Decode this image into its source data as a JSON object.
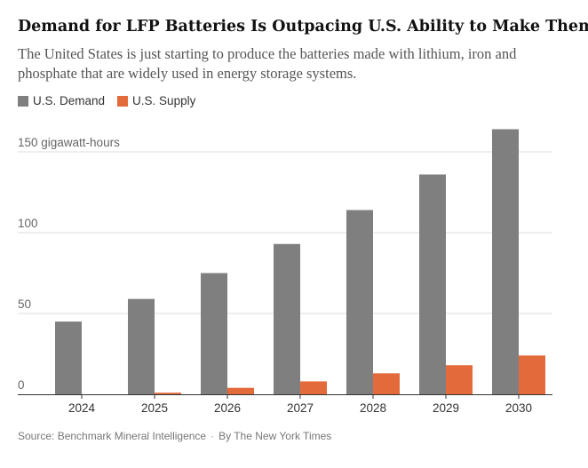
{
  "title": "Demand for LFP Batteries Is Outpacing U.S. Ability to Make Them",
  "subtitle": "The United States is just starting to produce the batteries made with lithium, iron and phosphate that are widely used in energy storage systems.",
  "legend": {
    "demand_label": "U.S. Demand",
    "supply_label": "U.S. Supply"
  },
  "source": {
    "text": "Source: Benchmark Mineral Intelligence",
    "separator": "·",
    "byline": "By The New York Times"
  },
  "colors": {
    "demand": "#7f7f7f",
    "supply": "#e36b3b",
    "grid": "#dddddd",
    "axis": "#333333",
    "label": "#666666"
  },
  "chart_data": {
    "type": "bar",
    "title": "Demand for LFP Batteries Is Outpacing U.S. Ability to Make Them",
    "xlabel": "",
    "ylabel": "gigawatt-hours",
    "categories": [
      "2024",
      "2025",
      "2026",
      "2027",
      "2028",
      "2029",
      "2030"
    ],
    "series": [
      {
        "name": "U.S. Demand",
        "values": [
          45,
          59,
          75,
          93,
          114,
          136,
          164
        ]
      },
      {
        "name": "U.S. Supply",
        "values": [
          0,
          1,
          4,
          8,
          13,
          18,
          24
        ]
      }
    ],
    "ylim": [
      0,
      165
    ],
    "yticks": [
      0,
      50,
      100,
      150
    ],
    "ytick_labels": [
      "0",
      "50",
      "100",
      "150 gigawatt-hours"
    ],
    "grid": true,
    "legend_position": "top-left"
  }
}
